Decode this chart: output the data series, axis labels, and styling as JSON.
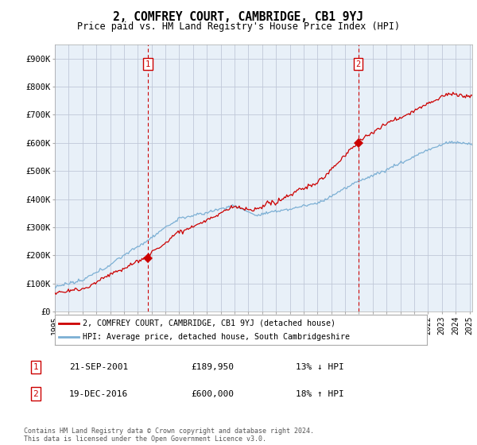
{
  "title": "2, COMFREY COURT, CAMBRIDGE, CB1 9YJ",
  "subtitle": "Price paid vs. HM Land Registry's House Price Index (HPI)",
  "ylabel_ticks": [
    "£0",
    "£100K",
    "£200K",
    "£300K",
    "£400K",
    "£500K",
    "£600K",
    "£700K",
    "£800K",
    "£900K"
  ],
  "ytick_values": [
    0,
    100000,
    200000,
    300000,
    400000,
    500000,
    600000,
    700000,
    800000,
    900000
  ],
  "ylim": [
    0,
    950000
  ],
  "xlim_start": 1995.0,
  "xlim_end": 2025.2,
  "sale1": {
    "date": 2001.72,
    "price": 189950,
    "label": "1"
  },
  "sale2": {
    "date": 2016.96,
    "price": 600000,
    "label": "2"
  },
  "annotation1": {
    "label": "1",
    "date_str": "21-SEP-2001",
    "price_str": "£189,950",
    "pct_str": "13% ↓ HPI"
  },
  "annotation2": {
    "label": "2",
    "date_str": "19-DEC-2016",
    "price_str": "£600,000",
    "pct_str": "18% ↑ HPI"
  },
  "legend_property_label": "2, COMFREY COURT, CAMBRIDGE, CB1 9YJ (detached house)",
  "legend_hpi_label": "HPI: Average price, detached house, South Cambridgeshire",
  "footer": "Contains HM Land Registry data © Crown copyright and database right 2024.\nThis data is licensed under the Open Government Licence v3.0.",
  "property_color": "#cc0000",
  "hpi_color": "#7bafd4",
  "vline_color": "#cc0000",
  "background_color": "#ffffff",
  "plot_bg_color": "#e8f0f8",
  "grid_color": "#c0c8d8"
}
